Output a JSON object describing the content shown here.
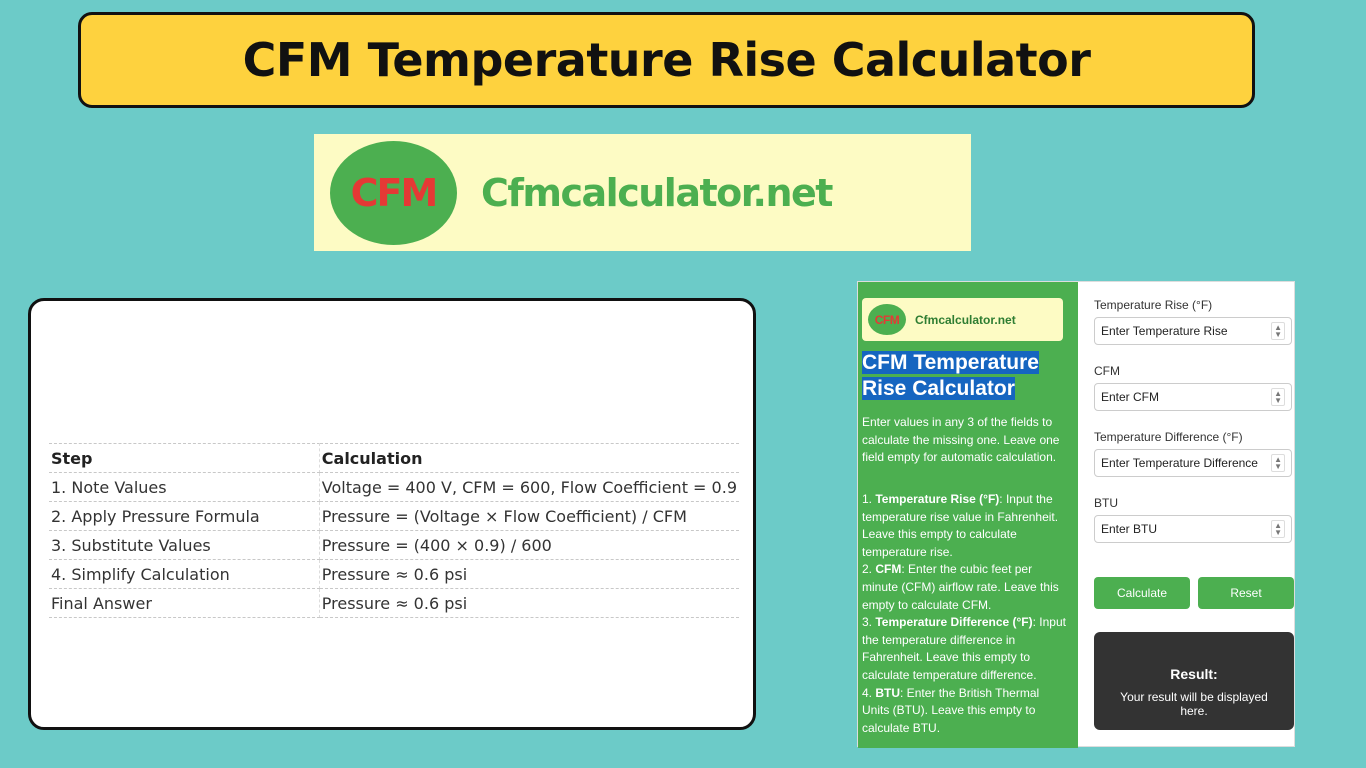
{
  "banner": {
    "title": "CFM Temperature Rise Calculator"
  },
  "logo": {
    "badge": "CFM",
    "site": "Cfmcalculator.net"
  },
  "table": {
    "headers": [
      "Step",
      "Calculation"
    ],
    "rows": [
      [
        "1. Note Values",
        "Voltage = 400 V, CFM = 600, Flow Coefficient = 0.9"
      ],
      [
        "2. Apply Pressure Formula",
        "Pressure = (Voltage × Flow Coefficient) / CFM"
      ],
      [
        "3. Substitute Values",
        "Pressure = (400 × 0.9) / 600"
      ],
      [
        "4. Simplify Calculation",
        "Pressure ≈ 0.6 psi"
      ],
      [
        "Final Answer",
        "Pressure ≈ 0.6 psi"
      ]
    ]
  },
  "widget": {
    "logo_badge": "CFM",
    "logo_site": "Cfmcalculator.net",
    "title_line1": "CFM Temperature",
    "title_line2": "Rise Calculator",
    "description": "Enter values in any 3 of the fields to calculate the missing one. Leave one field empty for automatic calculation.",
    "instructions": [
      {
        "num": "1. ",
        "term": "Temperature Rise (°F)",
        "text": ": Input the temperature rise value in Fahrenheit. Leave this empty to calculate temperature rise."
      },
      {
        "num": "2. ",
        "term": "CFM",
        "text": ": Enter the cubic feet per minute (CFM) airflow rate. Leave this empty to calculate CFM."
      },
      {
        "num": "3. ",
        "term": "Temperature Difference (°F)",
        "text": ": Input the temperature difference in Fahrenheit. Leave this empty to calculate temperature difference."
      },
      {
        "num": "4. ",
        "term": "BTU",
        "text": ": Enter the British Thermal Units (BTU). Leave this empty to calculate BTU."
      }
    ],
    "fields": [
      {
        "label": "Temperature Rise (°F)",
        "placeholder": "Enter Temperature Rise"
      },
      {
        "label": "CFM",
        "placeholder": "Enter CFM"
      },
      {
        "label": "Temperature Difference (°F)",
        "placeholder": "Enter Temperature Difference"
      },
      {
        "label": "BTU",
        "placeholder": "Enter BTU"
      }
    ],
    "calculate_label": "Calculate",
    "reset_label": "Reset",
    "result_title": "Result:",
    "result_text": "Your result will be displayed here."
  }
}
